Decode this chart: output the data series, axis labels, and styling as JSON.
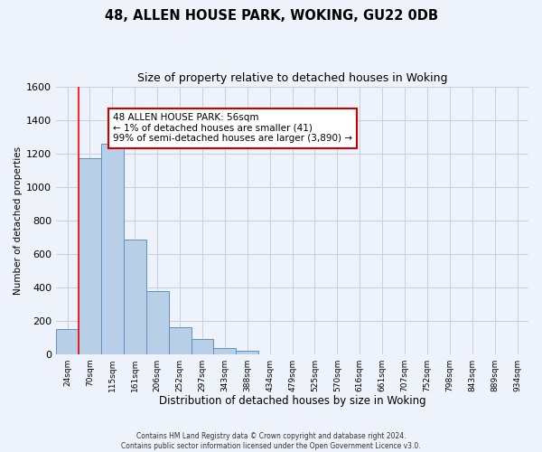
{
  "title": "48, ALLEN HOUSE PARK, WOKING, GU22 0DB",
  "subtitle": "Size of property relative to detached houses in Woking",
  "xlabel": "Distribution of detached houses by size in Woking",
  "ylabel": "Number of detached properties",
  "bar_labels": [
    "24sqm",
    "70sqm",
    "115sqm",
    "161sqm",
    "206sqm",
    "252sqm",
    "297sqm",
    "343sqm",
    "388sqm",
    "434sqm",
    "479sqm",
    "525sqm",
    "570sqm",
    "616sqm",
    "661sqm",
    "707sqm",
    "752sqm",
    "798sqm",
    "843sqm",
    "889sqm",
    "934sqm"
  ],
  "bar_values": [
    150,
    1170,
    1255,
    685,
    375,
    160,
    90,
    35,
    20,
    0,
    0,
    0,
    0,
    0,
    0,
    0,
    0,
    0,
    0,
    0,
    0
  ],
  "bar_color": "#b8cfe8",
  "bar_edge_color": "#6090c0",
  "background_color": "#eef2fa",
  "grid_color": "#c5d0e0",
  "ylim": [
    0,
    1600
  ],
  "yticks": [
    0,
    200,
    400,
    600,
    800,
    1000,
    1200,
    1400,
    1600
  ],
  "red_line_x": 0.5,
  "annotation_title": "48 ALLEN HOUSE PARK: 56sqm",
  "annotation_line1": "← 1% of detached houses are smaller (41)",
  "annotation_line2": "99% of semi-detached houses are larger (3,890) →",
  "annotation_box_color": "#ffffff",
  "annotation_box_edge": "#cc0000",
  "footer_line1": "Contains HM Land Registry data © Crown copyright and database right 2024.",
  "footer_line2": "Contains public sector information licensed under the Open Government Licence v3.0.",
  "title_fontsize": 10.5,
  "subtitle_fontsize": 9
}
